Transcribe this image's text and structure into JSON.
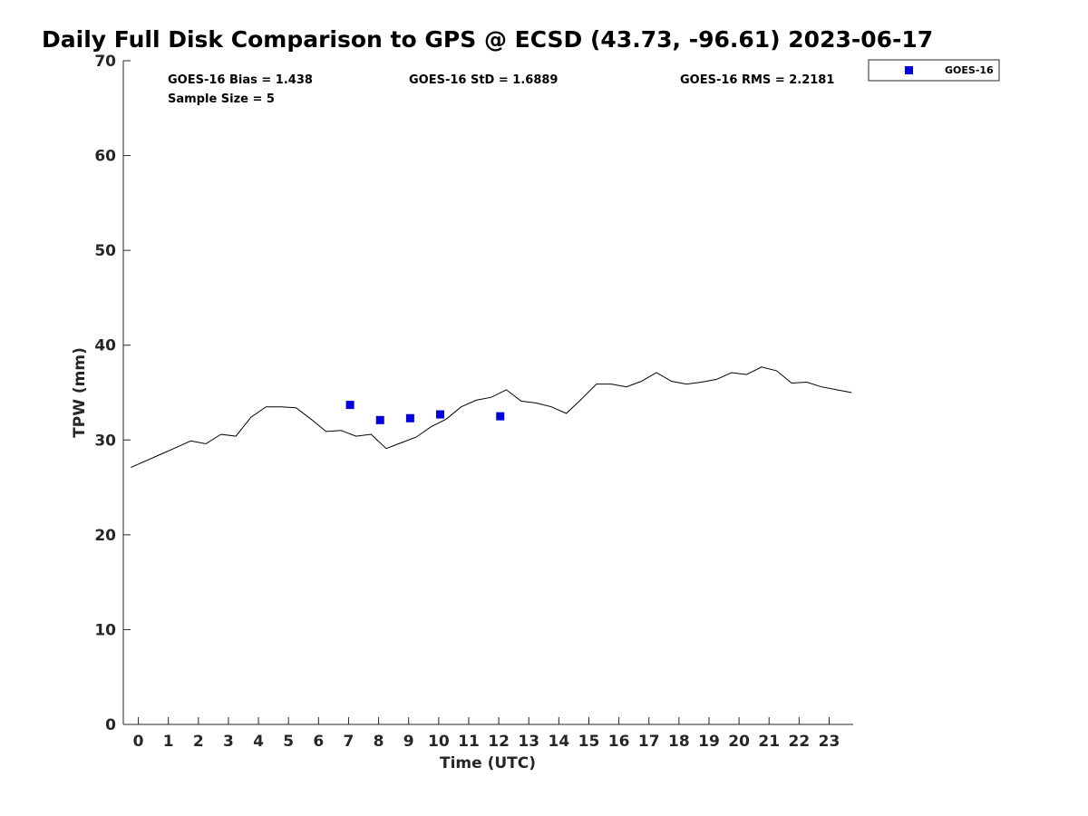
{
  "chart_data": {
    "type": "scatter",
    "title": "Daily Full Disk Comparison to GPS @ ECSD (43.73, -96.61) 2023-06-17",
    "xlabel": "Time (UTC)",
    "ylabel": "TPW (mm)",
    "xlim": [
      -0.5,
      23.8
    ],
    "ylim": [
      0,
      70
    ],
    "x_ticks": [
      0,
      1,
      2,
      3,
      4,
      5,
      6,
      7,
      8,
      9,
      10,
      11,
      12,
      13,
      14,
      15,
      16,
      17,
      18,
      19,
      20,
      21,
      22,
      23
    ],
    "y_ticks": [
      0,
      10,
      20,
      30,
      40,
      50,
      60,
      70
    ],
    "grid": false,
    "legend_position": "top-right outside",
    "stats": {
      "bias": "GOES-16 Bias = 1.438",
      "std": "GOES-16 StD = 1.6889",
      "rms": "GOES-16 RMS = 2.2181",
      "sample": "Sample Size = 5"
    },
    "series": [
      {
        "name": "GOES-16",
        "kind": "scatter",
        "marker": "square",
        "color": "#0000dd",
        "x": [
          7.05,
          8.05,
          9.05,
          10.05,
          12.05
        ],
        "y": [
          33.7,
          32.1,
          32.3,
          32.7,
          32.5
        ]
      },
      {
        "kind": "line",
        "color": "#000000",
        "x": [
          -0.25,
          0.25,
          0.75,
          1.25,
          1.75,
          2.25,
          2.75,
          3.25,
          3.75,
          4.25,
          4.75,
          5.25,
          5.75,
          6.25,
          6.75,
          7.25,
          7.75,
          8.25,
          8.75,
          9.25,
          9.75,
          10.25,
          10.75,
          11.25,
          11.75,
          12.25,
          12.75,
          13.25,
          13.75,
          14.25,
          14.75,
          15.25,
          15.75,
          16.25,
          16.75,
          17.25,
          17.75,
          18.25,
          18.75,
          19.25,
          19.75,
          20.25,
          20.75,
          21.25,
          21.75,
          22.25,
          22.75,
          23.25,
          23.75
        ],
        "y": [
          27.1,
          27.8,
          28.5,
          29.2,
          29.9,
          29.6,
          30.6,
          30.4,
          32.4,
          33.5,
          33.5,
          33.4,
          32.2,
          30.9,
          31.0,
          30.4,
          30.6,
          29.1,
          29.7,
          30.3,
          31.4,
          32.2,
          33.5,
          34.2,
          34.5,
          35.3,
          34.1,
          33.9,
          33.5,
          32.8,
          34.3,
          35.9,
          35.9,
          35.6,
          36.2,
          37.1,
          36.2,
          35.9,
          36.1,
          36.4,
          37.1,
          36.9,
          37.7,
          37.3,
          36.0,
          36.1,
          35.6,
          35.3,
          35.0
        ]
      }
    ]
  }
}
